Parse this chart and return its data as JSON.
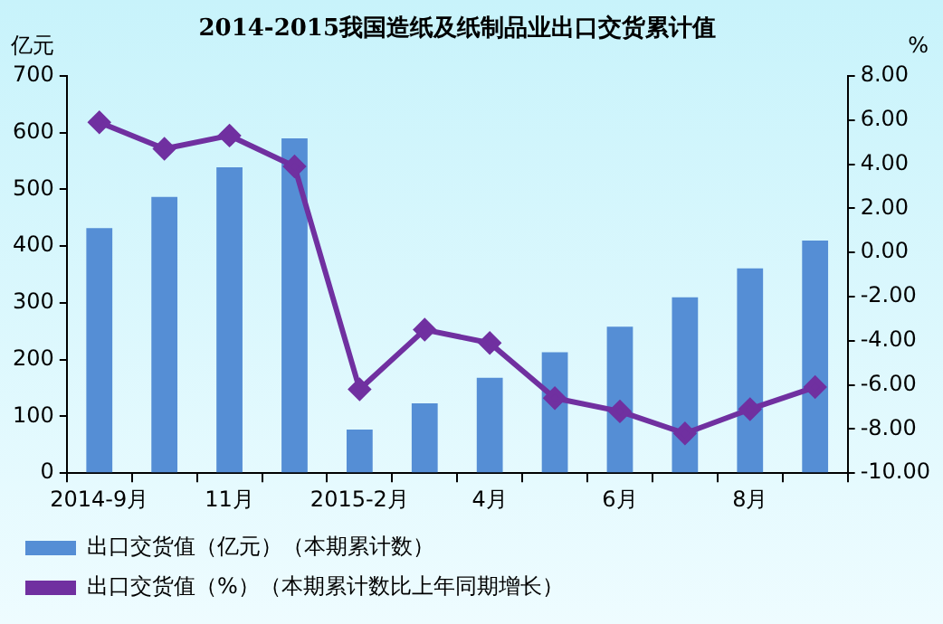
{
  "chart_data": {
    "type": "bar",
    "title": "2014-2015我国造纸及纸制品业出口交货累计值",
    "categories": [
      "2014-9月",
      null,
      "11月",
      null,
      "2015-2月",
      null,
      "4月",
      null,
      "6月",
      null,
      "8月",
      null
    ],
    "ylabel": "亿元",
    "y2label": "%",
    "series": [
      {
        "name": "出口交货值（亿元）（本期累计数）",
        "color": "#558ed5",
        "values": [
          432,
          487,
          539,
          590,
          77,
          123,
          168,
          213,
          258,
          310,
          361,
          410
        ]
      },
      {
        "name": "出口交货值（%）（本期累计数比上年同期增长）",
        "type": "line",
        "axis": "y2",
        "color": "#7030a0",
        "marker": "diamond",
        "values": [
          5.9,
          4.7,
          5.3,
          3.9,
          -6.2,
          -3.5,
          -4.1,
          -6.6,
          -7.2,
          -8.2,
          -7.1,
          -6.1
        ]
      }
    ],
    "ylim": [
      0,
      700
    ],
    "yticks": [
      0,
      100,
      200,
      300,
      400,
      500,
      600,
      700
    ],
    "y2lim": [
      -10,
      8
    ],
    "y2ticks": [
      {
        "value": 8,
        "label": "8.00"
      },
      {
        "value": 6,
        "label": "6.00"
      },
      {
        "value": 4,
        "label": "4.00"
      },
      {
        "value": 2,
        "label": "2.00"
      },
      {
        "value": 0,
        "label": "0.00"
      },
      {
        "value": -2,
        "label": "-2.00"
      },
      {
        "value": -4,
        "label": "-4.00"
      },
      {
        "value": -6,
        "label": "-6.00"
      },
      {
        "value": -8,
        "label": "-8.00"
      },
      {
        "value": -10,
        "label": "-10.00"
      }
    ],
    "legend": "bottom"
  }
}
